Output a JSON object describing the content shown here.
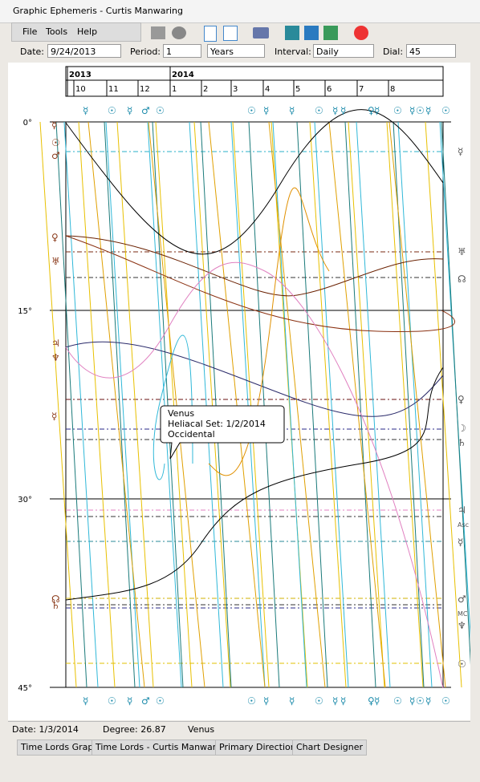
{
  "window": {
    "title": "Graphic Ephemeris - Curtis Manwaring"
  },
  "menu": [
    "File",
    "Tools",
    "Help"
  ],
  "toolbar": {
    "date_label": "Date:",
    "date": "9/24/2013",
    "period_label": "Period:",
    "period": "1",
    "period_unit": "Years",
    "interval_label": "Interval:",
    "interval": "Daily",
    "dial_label": "Dial:",
    "dial": "45"
  },
  "chart_data": {
    "type": "ephemeris",
    "years": [
      "2013",
      "2014"
    ],
    "months": [
      "10",
      "11",
      "12",
      "1",
      "2",
      "3",
      "4",
      "5",
      "6",
      "7",
      "8"
    ],
    "ylim": [
      0,
      45
    ],
    "yticks": [
      {
        "value": 0,
        "label": "0°"
      },
      {
        "value": 15,
        "label": "15°"
      },
      {
        "value": 30,
        "label": "30°"
      },
      {
        "value": 45,
        "label": "45°"
      }
    ],
    "top_glyphs": [
      "☿",
      "☉",
      "☿",
      "♂",
      "☉",
      "☉",
      "☿",
      "☿",
      "☉",
      "☿",
      "☿",
      "♀",
      "☿",
      "☉",
      "☿",
      "☉",
      "☿",
      "☉"
    ],
    "left_glyphs": [
      "☿",
      "☉",
      "♂",
      "♀",
      "♅",
      "♃",
      "♆",
      "☿",
      "☊",
      "♄"
    ],
    "right_glyphs": [
      "☿",
      "♅",
      "☊",
      "♀",
      "☽",
      "♄",
      "♃",
      "Asc",
      "☿",
      "♂",
      "MC",
      "♆",
      "☉"
    ],
    "tooltip": [
      "Venus",
      "Heliacal Set: 1/2/2014",
      "Occidental"
    ]
  },
  "status": [
    "Date: 1/3/2014",
    "Degree: 26.87",
    "Venus"
  ],
  "tabs": [
    "Time Lords Graph",
    "Time Lords - Curtis Manwaring",
    "Primary Directions",
    "Chart Designer"
  ]
}
